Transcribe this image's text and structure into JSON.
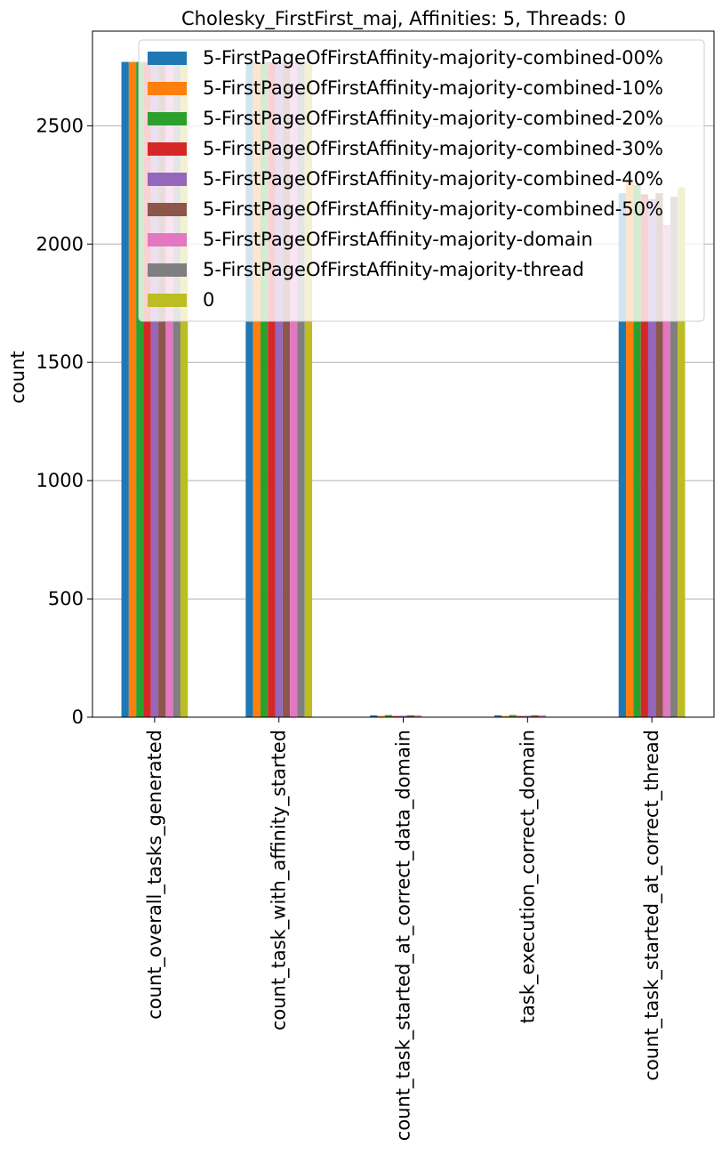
{
  "chart_data": {
    "type": "bar",
    "title": "Cholesky_FirstFirst_maj, Affinities: 5, Threads: 0",
    "xlabel": "",
    "ylabel": "count",
    "ylim": [
      0,
      2900
    ],
    "yticks": [
      0,
      500,
      1000,
      1500,
      2000,
      2500
    ],
    "grid": "y",
    "legend_position": "top-right",
    "categories": [
      "count_overall_tasks_generated",
      "count_task_with_affinity_started",
      "count_task_started_at_correct_data_domain",
      "task_execution_correct_domain",
      "count_task_started_at_correct_thread"
    ],
    "series": [
      {
        "name": "5-FirstPageOfFirstAffinity-majority-combined-00%",
        "color": "#1f77b4",
        "values": [
          2770,
          2770,
          8,
          8,
          2215
        ]
      },
      {
        "name": "5-FirstPageOfFirstAffinity-majority-combined-10%",
        "color": "#ff7f0e",
        "values": [
          2770,
          2770,
          5,
          5,
          2270
        ]
      },
      {
        "name": "5-FirstPageOfFirstAffinity-majority-combined-20%",
        "color": "#2ca02c",
        "values": [
          2770,
          2770,
          9,
          9,
          2250
        ]
      },
      {
        "name": "5-FirstPageOfFirstAffinity-majority-combined-30%",
        "color": "#d62728",
        "values": [
          2770,
          2770,
          5,
          5,
          2210
        ]
      },
      {
        "name": "5-FirstPageOfFirstAffinity-majority-combined-40%",
        "color": "#9467bd",
        "values": [
          2770,
          2770,
          6,
          6,
          2190
        ]
      },
      {
        "name": "5-FirstPageOfFirstAffinity-majority-combined-50%",
        "color": "#8c564b",
        "values": [
          2770,
          2770,
          8,
          8,
          2215
        ]
      },
      {
        "name": "5-FirstPageOfFirstAffinity-majority-domain",
        "color": "#e377c2",
        "values": [
          2770,
          2770,
          8,
          8,
          2080
        ]
      },
      {
        "name": "5-FirstPageOfFirstAffinity-majority-thread",
        "color": "#7f7f7f",
        "values": [
          2770,
          2770,
          0,
          0,
          2200
        ]
      },
      {
        "name": "0",
        "color": "#bcbd22",
        "values": [
          2770,
          2770,
          0,
          0,
          2240
        ]
      }
    ]
  }
}
